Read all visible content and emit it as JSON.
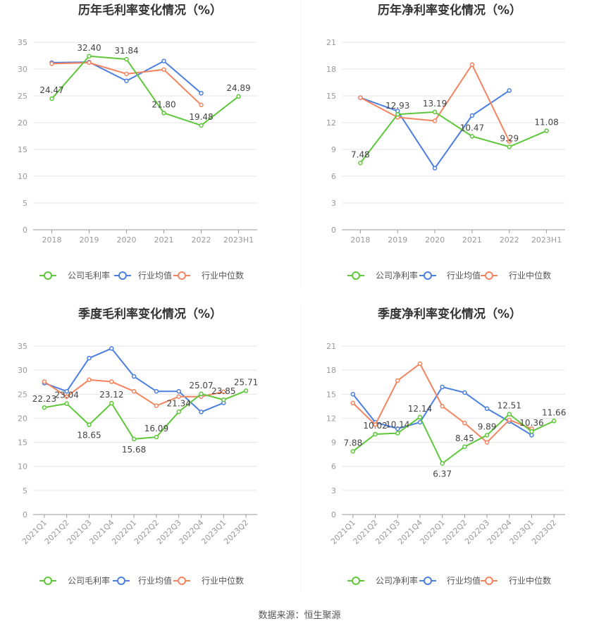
{
  "source": "数据来源：恒生聚源",
  "colors": {
    "company": "#5ec73a",
    "avg": "#4b7fe0",
    "median": "#f4845f"
  },
  "chart_data": [
    {
      "type": "line",
      "title": "历年毛利率变化情况（%）",
      "categories": [
        "2018",
        "2019",
        "2020",
        "2021",
        "2022",
        "2023H1"
      ],
      "ylim": [
        0,
        35
      ],
      "yticks": [
        0,
        5,
        10,
        15,
        20,
        25,
        30,
        35
      ],
      "series": [
        {
          "name": "公司毛利率",
          "key": "company",
          "values": [
            24.47,
            32.4,
            31.84,
            21.8,
            19.48,
            24.89
          ],
          "labels": [
            "24.47",
            "32.40",
            "31.84",
            "21.80",
            "19.48",
            "24.89"
          ]
        },
        {
          "name": "行业均值",
          "key": "avg",
          "values": [
            31.2,
            31.3,
            27.8,
            31.5,
            25.5,
            null
          ]
        },
        {
          "name": "行业中位数",
          "key": "median",
          "values": [
            31.0,
            31.2,
            29.1,
            29.9,
            23.3,
            null
          ]
        }
      ],
      "grid": true,
      "legend": "bottom"
    },
    {
      "type": "line",
      "title": "历年净利率变化情况（%）",
      "categories": [
        "2018",
        "2019",
        "2020",
        "2021",
        "2022",
        "2023H1"
      ],
      "ylim": [
        0,
        21
      ],
      "yticks": [
        0,
        3,
        6,
        9,
        12,
        15,
        18,
        21
      ],
      "series": [
        {
          "name": "公司净利率",
          "key": "company",
          "values": [
            7.48,
            12.93,
            13.19,
            10.47,
            9.29,
            11.08
          ],
          "labels": [
            "7.48",
            "12.93",
            "13.19",
            "10.47",
            "9.29",
            "11.08"
          ]
        },
        {
          "name": "行业均值",
          "key": "avg",
          "values": [
            14.8,
            13.3,
            6.9,
            12.8,
            15.6,
            null
          ]
        },
        {
          "name": "行业中位数",
          "key": "median",
          "values": [
            14.8,
            12.6,
            12.2,
            18.5,
            9.9,
            null
          ]
        }
      ],
      "grid": true,
      "legend": "bottom"
    },
    {
      "type": "line",
      "title": "季度毛利率变化情况（%）",
      "categories": [
        "2021Q1",
        "2021Q2",
        "2021Q3",
        "2021Q4",
        "2022Q1",
        "2022Q2",
        "2022Q3",
        "2022Q4",
        "2023Q1",
        "2023Q2"
      ],
      "ylim": [
        0,
        35
      ],
      "yticks": [
        0,
        5,
        10,
        15,
        20,
        25,
        30,
        35
      ],
      "series": [
        {
          "name": "公司毛利率",
          "key": "company",
          "values": [
            22.23,
            23.04,
            18.65,
            23.12,
            15.68,
            16.09,
            21.34,
            25.07,
            23.85,
            25.71
          ],
          "labels": [
            "22.23",
            "23.04",
            "18.65",
            "23.12",
            "15.68",
            "16.09",
            "21.34",
            "25.07",
            "23.85",
            "25.71"
          ]
        },
        {
          "name": "行业均值",
          "key": "avg",
          "values": [
            27.3,
            25.6,
            32.5,
            34.5,
            28.7,
            25.6,
            25.6,
            21.3,
            23.2,
            null
          ]
        },
        {
          "name": "行业中位数",
          "key": "median",
          "values": [
            27.6,
            24.5,
            28.0,
            27.6,
            25.6,
            22.6,
            24.5,
            24.5,
            25.5,
            null
          ]
        }
      ],
      "grid": true,
      "legend": "bottom"
    },
    {
      "type": "line",
      "title": "季度净利率变化情况（%）",
      "categories": [
        "2021Q1",
        "2021Q2",
        "2021Q3",
        "2021Q4",
        "2022Q1",
        "2022Q2",
        "2022Q3",
        "2022Q4",
        "2023Q1",
        "2023Q2"
      ],
      "ylim": [
        0,
        21
      ],
      "yticks": [
        0,
        3,
        6,
        9,
        12,
        15,
        18,
        21
      ],
      "series": [
        {
          "name": "公司净利率",
          "key": "company",
          "values": [
            7.88,
            10.02,
            10.14,
            12.14,
            6.37,
            8.45,
            9.89,
            12.51,
            10.36,
            11.66
          ],
          "labels": [
            "7.88",
            "10.02",
            "10.14",
            "12.14",
            "6.37",
            "8.45",
            "9.89",
            "12.51",
            "10.36",
            "11.66"
          ]
        },
        {
          "name": "行业均值",
          "key": "avg",
          "values": [
            15.0,
            11.5,
            10.7,
            11.5,
            15.9,
            15.2,
            13.2,
            11.6,
            9.9,
            null
          ]
        },
        {
          "name": "行业中位数",
          "key": "median",
          "values": [
            13.9,
            11.2,
            16.7,
            18.8,
            13.5,
            11.4,
            9.0,
            11.8,
            10.7,
            null
          ]
        }
      ],
      "grid": true,
      "legend": "bottom"
    }
  ]
}
